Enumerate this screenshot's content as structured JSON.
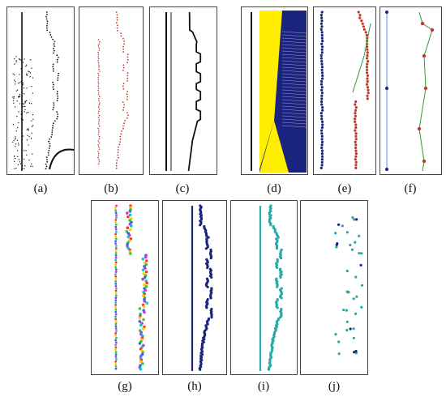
{
  "captions": {
    "a": "(a)",
    "b": "(b)",
    "c": "(c)",
    "d": "(d)",
    "e": "(e)",
    "f": "(f)",
    "g": "(g)",
    "h": "(h)",
    "i": "(i)",
    "j": "(j)"
  },
  "colors": {
    "black": "#111111",
    "red": "#c0392b",
    "navy": "#1a237e",
    "yellow": "#ffee00",
    "green": "#2e9e2e",
    "blue_light": "#5b8cff",
    "cyan": "#2aa7a7",
    "multicolor": [
      "#ff3333",
      "#ffcc00",
      "#33cc33",
      "#3366ff",
      "#cc33cc",
      "#00cccc"
    ]
  }
}
